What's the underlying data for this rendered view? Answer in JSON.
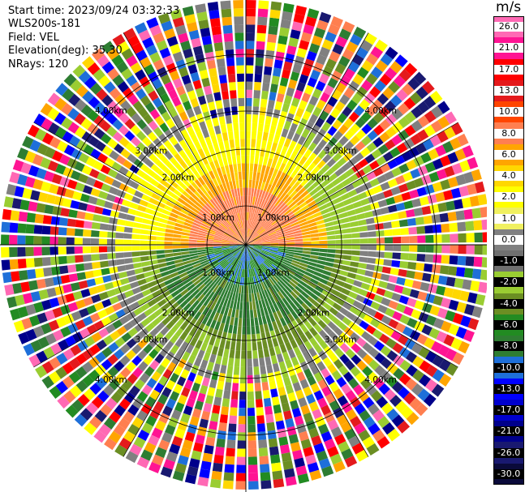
{
  "info": {
    "start_time": "Start time: 2023/09/24 03:32:33",
    "instrument": "WLS200s-181",
    "field": "Field: VEL",
    "elevation": "Elevation(deg): 35.30",
    "nrays": "NRays: 120"
  },
  "colorbar": {
    "unit": "m/s",
    "ticks": [
      "26.0",
      "21.0",
      "17.0",
      "13.0",
      "10.0",
      "8.0",
      "6.0",
      "4.0",
      "2.0",
      "1.0",
      "0.0",
      "-1.0",
      "-2.0",
      "-4.0",
      "-6.0",
      "-8.0",
      "-10.0",
      "-13.0",
      "-17.0",
      "-21.0",
      "-26.0",
      "-30.0"
    ],
    "segment_colors": [
      "#ff69b4",
      "#ff1493",
      "#ff0000",
      "#e41a1c",
      "#ff4500",
      "#ff7f50",
      "#ffa500",
      "#ffd700",
      "#ffff00",
      "#f0f060",
      "#808080",
      "#707070",
      "#9acd32",
      "#6b8e23",
      "#228b22",
      "#2e7d32",
      "#1e6fd9",
      "#0000ff",
      "#0000cd",
      "#00008b",
      "#191970",
      "#0a0a3a"
    ]
  },
  "chart_data": {
    "type": "heatmap",
    "title": "",
    "field": "VEL",
    "units": "m/s",
    "range_rings": [
      "1.00km",
      "2.00km",
      "3.00km",
      "4.00km"
    ],
    "n_rays": 120,
    "color_range": [
      -30.0,
      26.0
    ],
    "legend": "right"
  }
}
